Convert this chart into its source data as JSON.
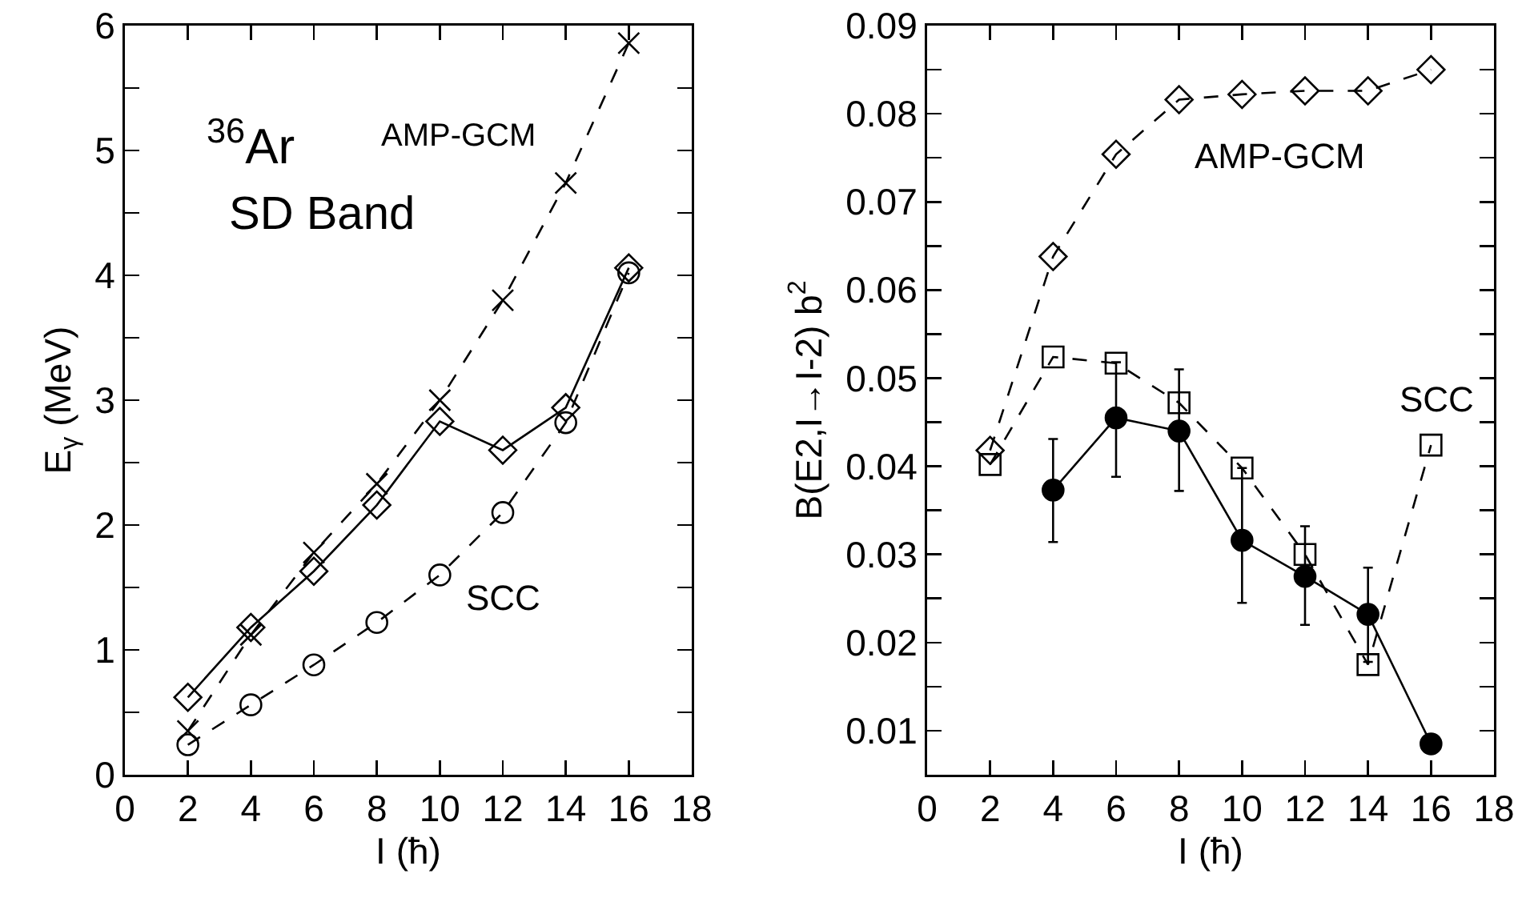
{
  "chart_data": [
    {
      "type": "line",
      "xlabel": "I (ħ)",
      "ylabel": "E$_{γ}$ (MeV)",
      "xlim": [
        0,
        18
      ],
      "xticks": [
        0,
        2,
        4,
        6,
        8,
        10,
        12,
        14,
        16,
        18
      ],
      "ylim": [
        0,
        6
      ],
      "yticks": [
        0,
        {
          "value": 0.5,
          "label": null
        },
        1,
        {
          "value": 1.5,
          "label": null
        },
        2,
        {
          "value": 2.5,
          "label": null
        },
        3,
        {
          "value": 3.5,
          "label": null
        },
        4,
        {
          "value": 4.5,
          "label": null
        },
        5,
        {
          "value": 5.5,
          "label": null
        },
        6
      ],
      "grid": false,
      "x": [
        2,
        4,
        6,
        8,
        10,
        12,
        14,
        16
      ],
      "series": [
        {
          "color": "#000000",
          "marker": "diamond",
          "line_style": "solid",
          "values": [
            0.62,
            1.18,
            1.63,
            2.16,
            2.83,
            2.6,
            2.94,
            4.06
          ]
        },
        {
          "color": "#000000",
          "marker": "cross",
          "line_style": "dashed",
          "values": [
            0.35,
            1.12,
            1.78,
            2.33,
            3.0,
            3.8,
            4.74,
            5.86
          ]
        },
        {
          "color": "#000000",
          "marker": "circle",
          "line_style": "dashed",
          "values": [
            0.24,
            0.56,
            0.88,
            1.22,
            1.6,
            2.1,
            2.82,
            4.02
          ]
        }
      ],
      "annotations": [
        "$^{36}$Ar",
        "SD Band",
        "AMP-GCM",
        "SCC"
      ]
    },
    {
      "type": "line",
      "xlabel": "I (ħ)",
      "ylabel": "B(E2,I→I-2) b$^{2}$",
      "xlim": [
        0,
        18
      ],
      "xticks": [
        0,
        2,
        4,
        6,
        8,
        10,
        12,
        14,
        16,
        18
      ],
      "ylim": [
        0.005,
        0.09
      ],
      "yticks": [
        0.01,
        {
          "value": 0.015,
          "label": null
        },
        0.02,
        {
          "value": 0.025,
          "label": null
        },
        0.03,
        {
          "value": 0.035,
          "label": null
        },
        0.04,
        {
          "value": 0.045,
          "label": null
        },
        0.05,
        {
          "value": 0.055,
          "label": null
        },
        0.06,
        {
          "value": 0.065,
          "label": null
        },
        0.07,
        {
          "value": 0.075,
          "label": null
        },
        0.08,
        {
          "value": 0.085,
          "label": null
        },
        0.09
      ],
      "grid": false,
      "x": [
        2,
        4,
        6,
        8,
        10,
        12,
        14,
        16
      ],
      "series": [
        {
          "color": "#000000",
          "marker": "diamond",
          "line_style": "dashed",
          "values": [
            0.0418,
            0.0638,
            0.0754,
            0.0816,
            0.0822,
            0.0826,
            0.0826,
            0.085
          ]
        },
        {
          "color": "#000000",
          "marker": "square",
          "line_style": "dashed",
          "values": [
            0.0402,
            0.0524,
            0.0517,
            0.0472,
            0.0398,
            0.03,
            0.0175,
            0.0424
          ]
        },
        {
          "color": "#000000",
          "marker": "circle",
          "line_style": "solid",
          "values": [
            null,
            0.0373,
            0.0455,
            0.044,
            0.0316,
            0.0275,
            0.0232,
            0.0085
          ],
          "errors": [
            null,
            [
              0.0314,
              0.0431
            ],
            [
              0.0388,
              0.0518
            ],
            [
              0.0372,
              0.051
            ],
            [
              0.0245,
              0.0398
            ],
            [
              0.022,
              0.0332
            ],
            [
              0.0178,
              0.0285
            ],
            null
          ]
        }
      ],
      "annotations": [
        "AMP-GCM",
        "SCC"
      ]
    }
  ]
}
